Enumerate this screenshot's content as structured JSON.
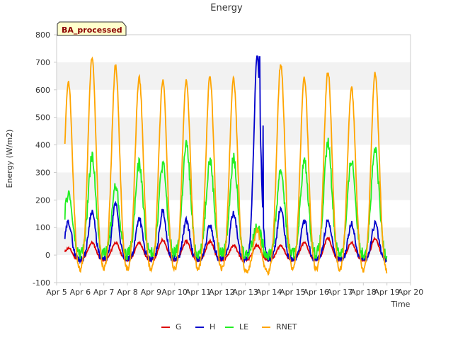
{
  "chart_data": {
    "type": "line",
    "title": "Energy",
    "xlabel": "Time",
    "ylabel": "Energy (W/m2)",
    "ylim": [
      -100,
      800
    ],
    "xlim": [
      5,
      20
    ],
    "yticks": [
      -100,
      0,
      100,
      200,
      300,
      400,
      500,
      600,
      700,
      800
    ],
    "xticks": [
      5,
      6,
      7,
      8,
      9,
      10,
      11,
      12,
      13,
      14,
      15,
      16,
      17,
      18,
      19,
      20
    ],
    "xtick_labels": [
      "Apr 5",
      "Apr 6",
      "Apr 7",
      "Apr 8",
      "Apr 9",
      "Apr 10",
      "Apr 11",
      "Apr 12",
      "Apr 13",
      "Apr 14",
      "Apr 15",
      "Apr 16",
      "Apr 17",
      "Apr 18",
      "Apr 19",
      "Apr 20"
    ],
    "annotation": "BA_processed",
    "daily_peaks": {
      "days": [
        5.5,
        6.5,
        7.5,
        8.5,
        9.5,
        10.5,
        11.5,
        12.5,
        13.5,
        14.5,
        15.5,
        16.5,
        17.5,
        18.5
      ],
      "RNET": [
        630,
        715,
        685,
        645,
        635,
        632,
        648,
        638,
        90,
        695,
        645,
        668,
        605,
        658
      ],
      "LE": [
        225,
        355,
        250,
        330,
        330,
        400,
        345,
        350,
        110,
        310,
        340,
        405,
        345,
        380
      ],
      "H": [
        120,
        160,
        185,
        135,
        160,
        125,
        110,
        155,
        720,
        170,
        125,
        130,
        115,
        115
      ],
      "G": [
        25,
        45,
        45,
        45,
        55,
        50,
        50,
        35,
        35,
        35,
        45,
        60,
        45,
        60
      ]
    },
    "night_values": {
      "RNET": -70,
      "LE": 0,
      "H": -15,
      "G": -20
    },
    "series": [
      {
        "name": "G",
        "color": "#dd0000"
      },
      {
        "name": "H",
        "color": "#0000cc"
      },
      {
        "name": "LE",
        "color": "#22ee22"
      },
      {
        "name": "RNET",
        "color": "#ffa500"
      }
    ]
  },
  "colors": {
    "grid_band": "#f2f2f2",
    "axis": "#cccccc",
    "tag_bg": "#ffffcc"
  }
}
